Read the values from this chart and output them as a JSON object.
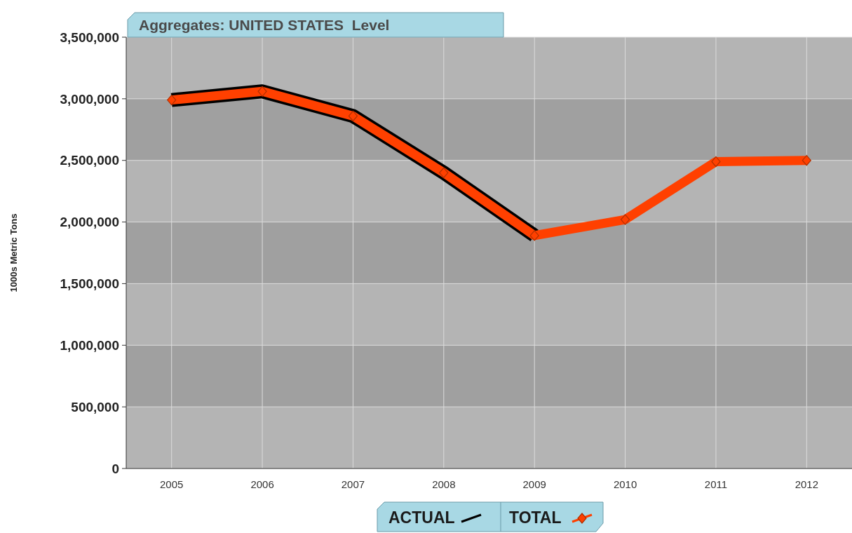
{
  "chart_data": {
    "type": "line",
    "title": "Aggregates: UNITED STATES  Level",
    "ylabel": "1000s Metric Tons",
    "categories": [
      "2005",
      "2006",
      "2007",
      "2008",
      "2009",
      "2010",
      "2011",
      "2012"
    ],
    "series": [
      {
        "name": "ACTUAL",
        "color": "#000000",
        "values": [
          2990000,
          3060000,
          2860000,
          2400000,
          1890000,
          null,
          null,
          null
        ],
        "marker": "none"
      },
      {
        "name": "TOTAL",
        "color": "#ff4000",
        "values": [
          2990000,
          3060000,
          2860000,
          2400000,
          1890000,
          2020000,
          2490000,
          2500000
        ],
        "marker": "diamond"
      }
    ],
    "ylim": [
      0,
      3500000
    ],
    "yticks": [
      {
        "value": 0,
        "label": "0"
      },
      {
        "value": 500000,
        "label": "500,000"
      },
      {
        "value": 1000000,
        "label": "1,000,000"
      },
      {
        "value": 1500000,
        "label": "1,500,000"
      },
      {
        "value": 2000000,
        "label": "2,000,000"
      },
      {
        "value": 2500000,
        "label": "2,500,000"
      },
      {
        "value": 3000000,
        "label": "3,000,000"
      },
      {
        "value": 3500000,
        "label": "3,500,000"
      }
    ],
    "grid": true,
    "legend": "bottom",
    "line_style": "solid"
  }
}
